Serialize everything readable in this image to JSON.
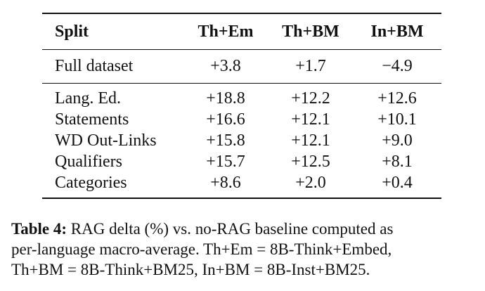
{
  "table": {
    "headers": [
      "Split",
      "Th+Em",
      "Th+BM",
      "In+BM"
    ],
    "full_row": {
      "split": "Full dataset",
      "values": [
        "+3.8",
        "+1.7",
        "−4.9"
      ]
    },
    "rows": [
      {
        "split": "Lang. Ed.",
        "values": [
          "+18.8",
          "+12.2",
          "+12.6"
        ]
      },
      {
        "split": "Statements",
        "values": [
          "+16.6",
          "+12.1",
          "+10.1"
        ]
      },
      {
        "split": "WD Out-Links",
        "values": [
          "+15.8",
          "+12.1",
          "+9.0"
        ]
      },
      {
        "split": "Qualifiers",
        "values": [
          "+15.7",
          "+12.5",
          "+8.1"
        ]
      },
      {
        "split": "Categories",
        "values": [
          "+8.6",
          "+2.0",
          "+0.4"
        ]
      }
    ]
  },
  "caption": {
    "label": "Table 4:",
    "line1": " RAG delta (%) vs. no-RAG baseline computed as",
    "line2": "per-language macro-average.  Th+Em = 8B-Think+Embed,",
    "line3": "Th+BM = 8B-Think+BM25, In+BM = 8B-Inst+BM25."
  }
}
